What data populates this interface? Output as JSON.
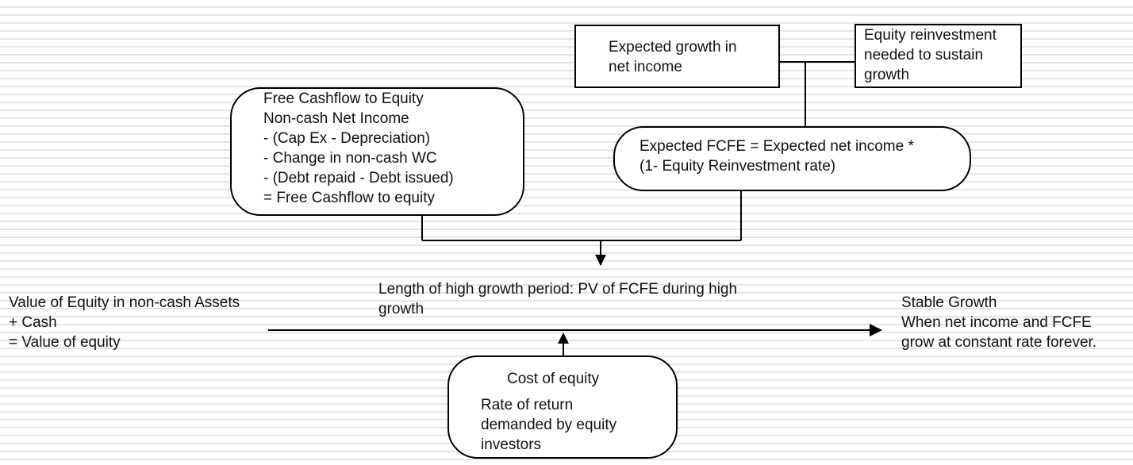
{
  "growth_box": {
    "lines": [
      "Expected growth in",
      "net income"
    ]
  },
  "reinvestment_box": {
    "lines": [
      "Equity reinvestment",
      "needed to sustain",
      "growth"
    ]
  },
  "fcfe_definition_box": {
    "lines": [
      "Free Cashflow to Equity",
      "Non-cash Net Income",
      "- (Cap Ex - Depreciation)",
      "- Change in non-cash WC",
      "- (Debt repaid - Debt issued)",
      "= Free Cashflow to equity"
    ]
  },
  "expected_fcfe_box": {
    "lines": [
      "Expected FCFE = Expected net income *",
      "(1- Equity Reinvestment rate)"
    ]
  },
  "high_growth_label": {
    "lines": [
      "Length of high growth period: PV of FCFE during high",
      "growth"
    ]
  },
  "value_of_equity_text": {
    "lines": [
      "Value of Equity in non-cash Assets",
      "+ Cash",
      "= Value of equity"
    ]
  },
  "stable_growth_text": {
    "lines": [
      "Stable Growth",
      "When net income and FCFE",
      "grow at constant rate forever."
    ]
  },
  "cost_of_equity_box": {
    "title": "Cost of equity",
    "lines": [
      "Rate of return",
      "demanded by equity",
      "investors"
    ]
  },
  "colors": {
    "line": "#000000",
    "background": "#ffffff",
    "stripe": "#e6e6e6"
  }
}
